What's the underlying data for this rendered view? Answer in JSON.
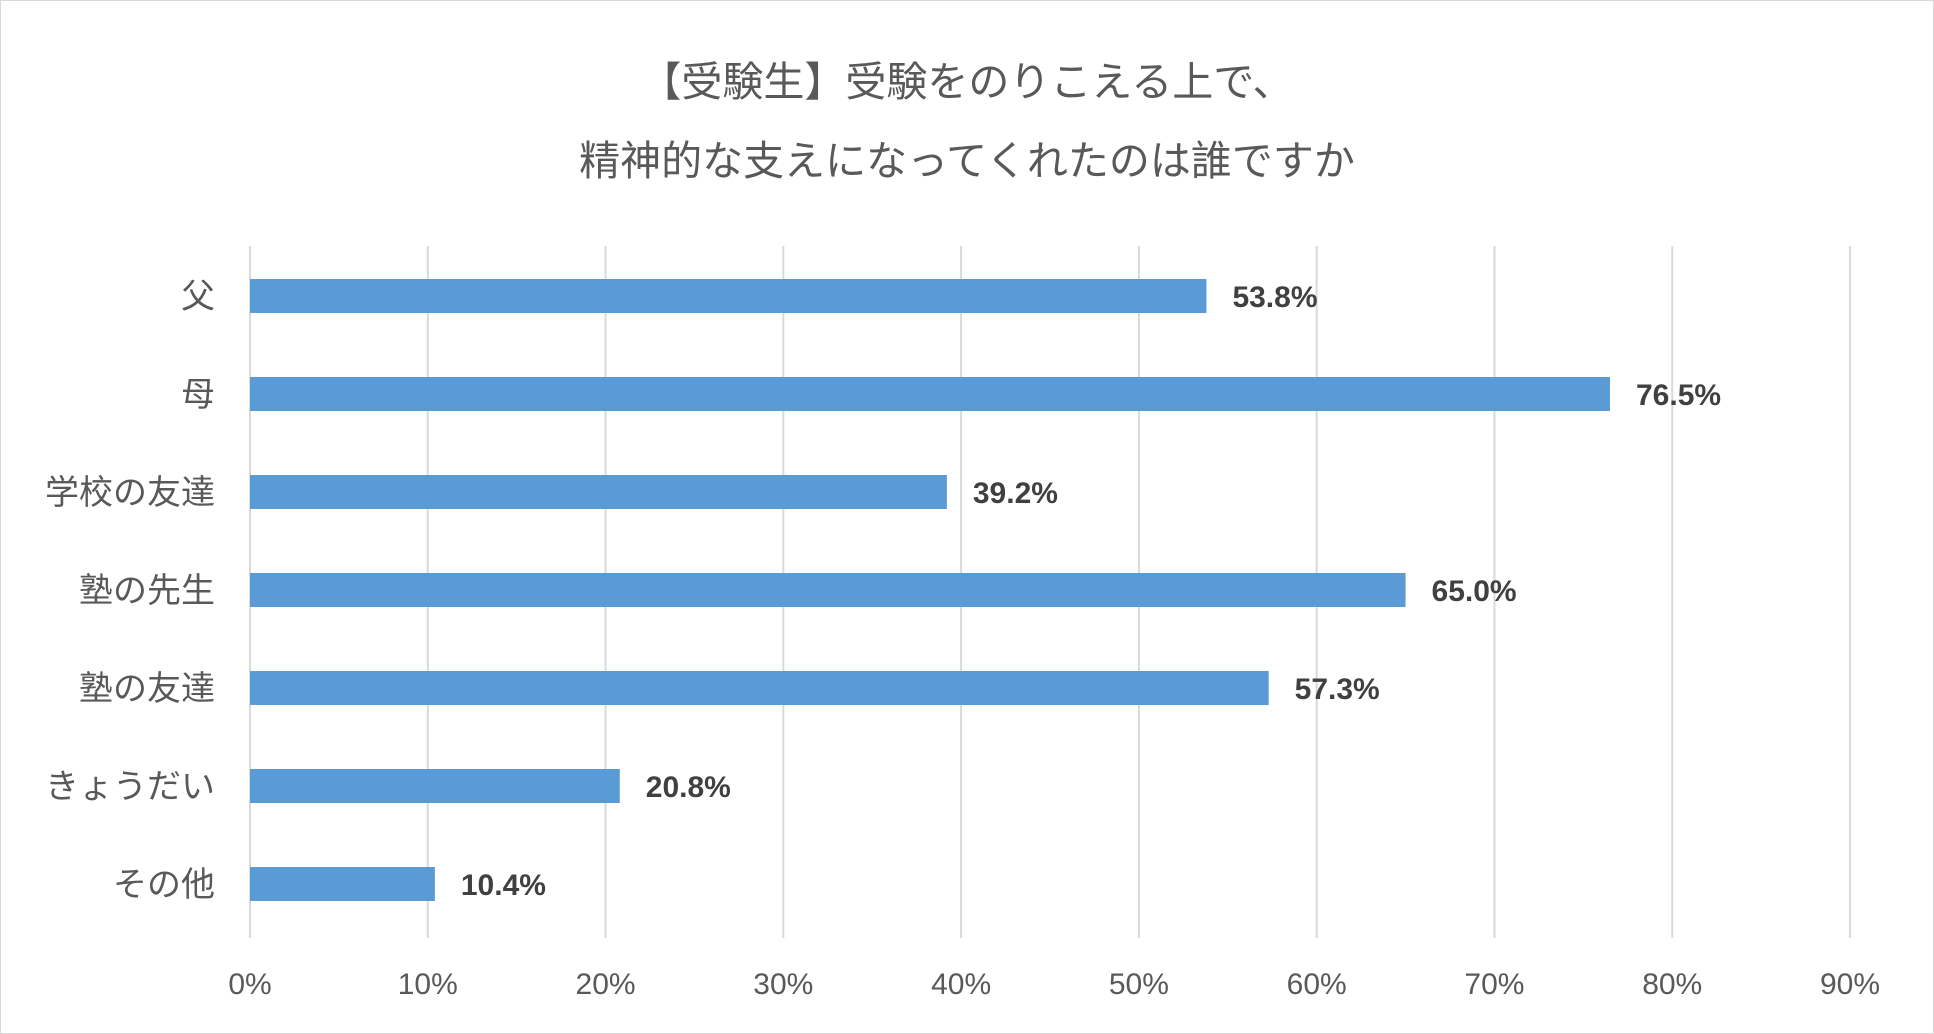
{
  "chart_data": {
    "type": "bar",
    "orientation": "horizontal",
    "title": [
      "【受験生】受験をのりこえる上で、",
      "精神的な支えになってくれたのは誰ですか"
    ],
    "categories": [
      "父",
      "母",
      "学校の友達",
      "塾の先生",
      "塾の友達",
      "きょうだい",
      "その他"
    ],
    "values": [
      53.8,
      76.5,
      39.2,
      65.0,
      57.3,
      20.8,
      10.4
    ],
    "data_labels": [
      "53.8%",
      "76.5%",
      "39.2%",
      "65.0%",
      "57.3%",
      "20.8%",
      "10.4%"
    ],
    "xlim": [
      0,
      90
    ],
    "x_ticks": [
      "0%",
      "10%",
      "20%",
      "30%",
      "40%",
      "50%",
      "60%",
      "70%",
      "80%",
      "90%"
    ],
    "xlabel": "",
    "ylabel": "",
    "grid": "vertical",
    "legend": "none",
    "bar_color": "#5b9bd5"
  }
}
